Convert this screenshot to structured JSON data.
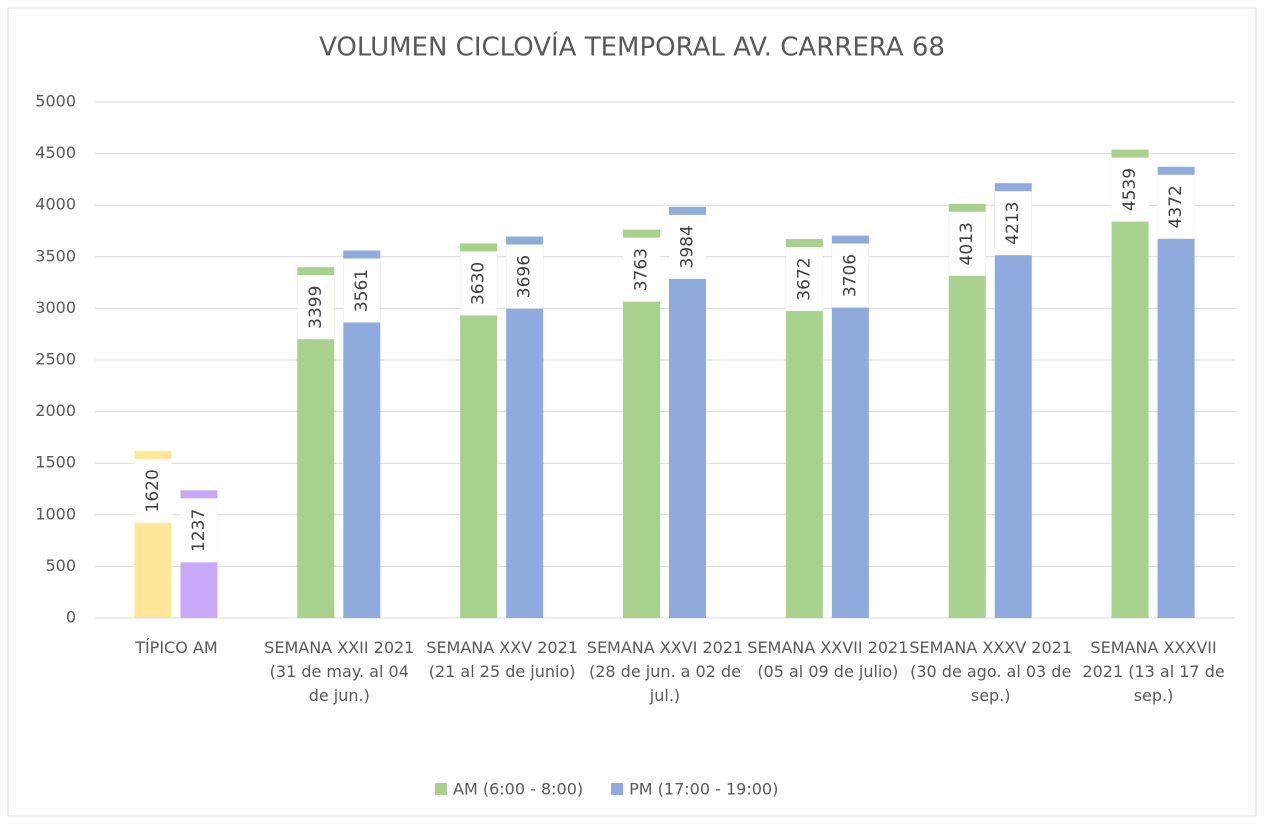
{
  "chart_data": {
    "type": "bar",
    "title": "VOLUMEN CICLOVÍA TEMPORAL AV. CARRERA 68",
    "categories": [
      "TÍPICO AM",
      "SEMANA XXII 2021 (31 de may. al 04 de jun.)",
      "SEMANA XXV 2021 (21 al 25 de junio)",
      "SEMANA XXVI 2021 (28 de jun. a 02 de jul.)",
      "SEMANA XXVII 2021 (05 al 09 de julio)",
      "SEMANA XXXV 2021 (30 de ago. al 03 de sep.)",
      "SEMANA XXXVII 2021 (13 al 17 de sep.)"
    ],
    "series": [
      {
        "name": "AM (6:00 - 8:00)",
        "color": "#a9d18e",
        "colors": [
          "#ffe699",
          "#a9d18e",
          "#a9d18e",
          "#a9d18e",
          "#a9d18e",
          "#a9d18e",
          "#a9d18e"
        ],
        "values": [
          1620,
          3399,
          3630,
          3763,
          3672,
          4013,
          4539
        ]
      },
      {
        "name": "PM (17:00 - 19:00)",
        "color": "#8faadc",
        "colors": [
          "#c9a9f7",
          "#8faadc",
          "#8faadc",
          "#8faadc",
          "#8faadc",
          "#8faadc",
          "#8faadc"
        ],
        "values": [
          1237,
          3561,
          3696,
          3984,
          3706,
          4213,
          4372
        ]
      }
    ],
    "ylim": [
      0,
      5000
    ],
    "yticks": [
      0,
      500,
      1000,
      1500,
      2000,
      2500,
      3000,
      3500,
      4000,
      4500,
      5000
    ],
    "grid": true,
    "legend": "bottom"
  }
}
